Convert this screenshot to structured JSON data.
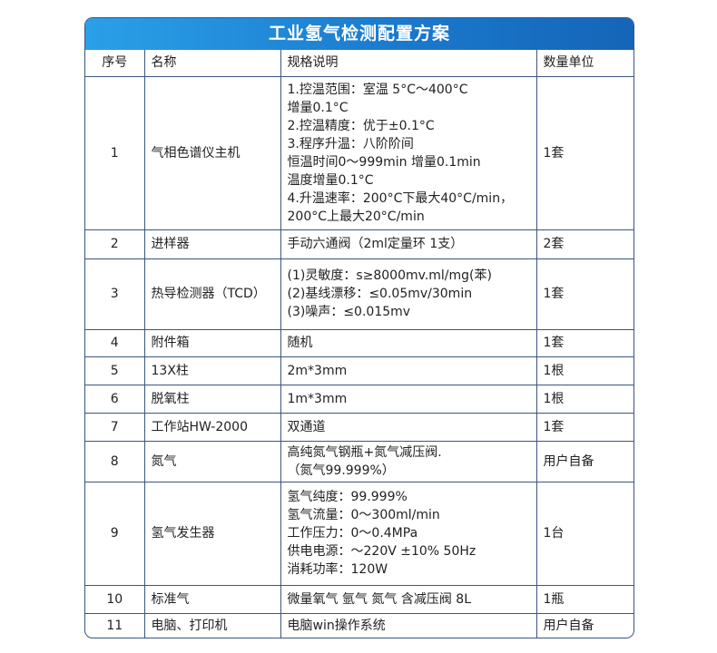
{
  "title": "工业氢气检测配置方案",
  "headers": [
    "序号",
    "名称",
    "规格说明",
    "数量单位"
  ],
  "rows": [
    {
      "no": "1",
      "name": "气相色谱仪主机",
      "spec": [
        "1.控温范围：室温 5°C～400°C",
        "增量0.1°C",
        "2.控温精度：优于±0.1°C",
        "3.程序升温：八阶阶间",
        "恒温时间0～999min 增量0.1min",
        "温度增量0.1°C",
        "4.升温速率：200°C下最大40°C/min，",
        "200°C上最大20°C/min"
      ],
      "qty": "1套"
    },
    {
      "no": "2",
      "name": "进样器",
      "spec": [
        "手动六通阀（2ml定量环 1支）"
      ],
      "qty": "2套"
    },
    {
      "no": "3",
      "name": "热导检测器（TCD）",
      "spec": [
        "(1)灵敏度：s≥8000mv.ml/mg(苯)",
        "(2)基线漂移：≤0.05mv/30min",
        "(3)噪声：≤0.015mv"
      ],
      "qty": "1套"
    },
    {
      "no": "4",
      "name": "附件箱",
      "spec": [
        "随机"
      ],
      "qty": "1套"
    },
    {
      "no": "5",
      "name": "13X柱",
      "spec": [
        "2m*3mm"
      ],
      "qty": "1根"
    },
    {
      "no": "6",
      "name": "脱氧柱",
      "spec": [
        "1m*3mm"
      ],
      "qty": "1根"
    },
    {
      "no": "7",
      "name": "工作站HW-2000",
      "spec": [
        "双通道"
      ],
      "qty": "1套"
    },
    {
      "no": "8",
      "name": "氮气",
      "spec": [
        "高纯氮气钢瓶+氮气减压阀.",
        "（氮气99.999%）"
      ],
      "qty": "用户自备"
    },
    {
      "no": "9",
      "name": "氢气发生器",
      "spec": [
        "氢气纯度：99.999%",
        "氢气流量：0～300ml/min",
        "工作压力：0～0.4MPa",
        "供电电源：～220V ±10% 50Hz",
        "消耗功率：120W"
      ],
      "qty": "1台"
    },
    {
      "no": "10",
      "name": "标准气",
      "spec": [
        "微量氧气 氩气 氮气 含减压阀 8L"
      ],
      "qty": "1瓶"
    },
    {
      "no": "11",
      "name": "电脑、打印机",
      "spec": [
        "电脑win操作系统"
      ],
      "qty": "用户自备"
    }
  ]
}
